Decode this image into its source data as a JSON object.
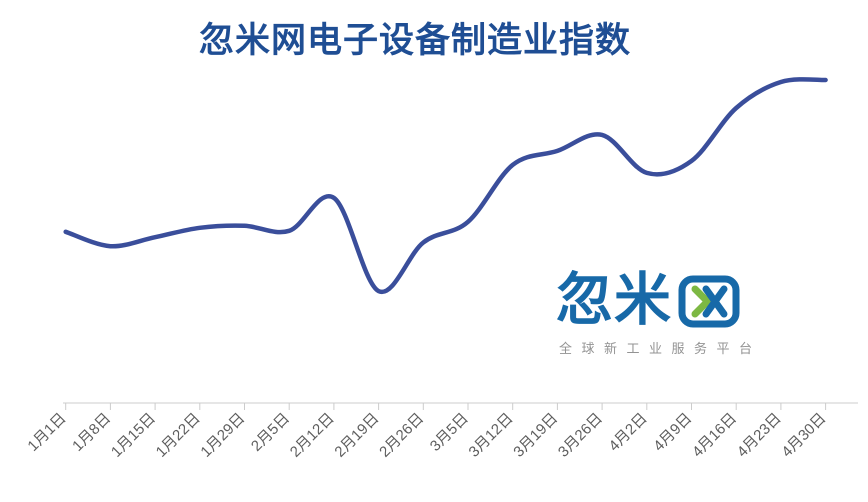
{
  "title": {
    "text": "忽米网电子设备制造业指数",
    "color": "#1f4e94"
  },
  "watermark": {
    "brand_text": "忽米网",
    "brand_prefix": "忽米",
    "wang_glyph": "stylized 网 character: rounded frame with green chevron and blue X",
    "subtitle": "全球新工业服务平台",
    "brand_color": "#1769a8",
    "accent_green": "#7db843",
    "subtitle_color": "#939393"
  },
  "chart_data": {
    "type": "line",
    "title": "忽米网电子设备制造业指数",
    "x": [
      "1月1日",
      "1月8日",
      "1月15日",
      "1月22日",
      "1月29日",
      "2月5日",
      "2月12日",
      "2月19日",
      "2月26日",
      "3月5日",
      "3月12日",
      "3月19日",
      "3月26日",
      "4月2日",
      "4月9日",
      "4月16日",
      "4月23日",
      "4月30日"
    ],
    "values": [
      51.4,
      47.1,
      49.8,
      52.6,
      53.2,
      51.7,
      61.6,
      33.6,
      48.2,
      54.4,
      71.5,
      75.7,
      80.5,
      69.1,
      72.7,
      88.6,
      96.4,
      97.0
    ],
    "ylim": [
      0,
      100
    ],
    "y_axis": "hidden",
    "note": "no y-axis labels shown in figure; values are relative index heights (0-100) estimated from the curve",
    "smooth": true,
    "markers": false,
    "grid": false,
    "legend": "none",
    "x_axis_label_rotation": 45,
    "line_color": "#3a4e9b",
    "line_width": 4.5,
    "axis_color": "#cccccc",
    "tick_label_color": "#5e5e5e",
    "tick_label_font_size": 15
  }
}
